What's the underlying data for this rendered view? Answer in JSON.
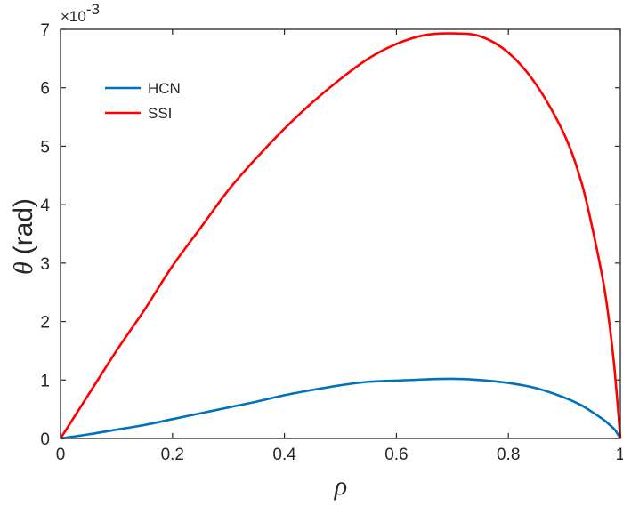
{
  "chart_data": {
    "type": "line",
    "xlabel": "ρ",
    "ylabel_symbol": "θ",
    "ylabel_unit": "(rad)",
    "y_exponent_base": "×10",
    "y_exponent_power": "-3",
    "xlim": [
      0,
      1
    ],
    "ylim": [
      0,
      7
    ],
    "xticks": [
      0,
      0.2,
      0.4,
      0.6,
      0.8,
      1
    ],
    "xtick_labels": [
      "0",
      "0.2",
      "0.4",
      "0.6",
      "0.8",
      "1"
    ],
    "yticks": [
      0,
      1,
      2,
      3,
      4,
      5,
      6,
      7
    ],
    "ytick_labels": [
      "0",
      "1",
      "2",
      "3",
      "4",
      "5",
      "6",
      "7"
    ],
    "grid": false,
    "legend_position": "top-left",
    "series": [
      {
        "name": "HCN",
        "color": "#0072bd",
        "x": [
          0,
          0.05,
          0.1,
          0.15,
          0.2,
          0.25,
          0.3,
          0.35,
          0.4,
          0.45,
          0.5,
          0.55,
          0.6,
          0.65,
          0.7,
          0.75,
          0.8,
          0.85,
          0.9,
          0.93,
          0.95,
          0.97,
          0.98,
          0.99,
          0.995,
          1.0
        ],
        "y": [
          0,
          0.07,
          0.15,
          0.23,
          0.33,
          0.43,
          0.53,
          0.63,
          0.74,
          0.83,
          0.91,
          0.97,
          0.99,
          1.01,
          1.02,
          1.0,
          0.95,
          0.86,
          0.7,
          0.57,
          0.45,
          0.32,
          0.24,
          0.15,
          0.08,
          0
        ]
      },
      {
        "name": "SSI",
        "color": "#ff0000",
        "x": [
          0,
          0.05,
          0.1,
          0.15,
          0.2,
          0.25,
          0.3,
          0.35,
          0.4,
          0.45,
          0.5,
          0.55,
          0.6,
          0.65,
          0.7,
          0.75,
          0.8,
          0.85,
          0.9,
          0.93,
          0.95,
          0.97,
          0.98,
          0.985,
          0.99,
          0.995,
          1.0
        ],
        "y": [
          0,
          0.75,
          1.5,
          2.2,
          2.95,
          3.6,
          4.25,
          4.8,
          5.3,
          5.75,
          6.15,
          6.5,
          6.75,
          6.9,
          6.93,
          6.88,
          6.6,
          6.05,
          5.2,
          4.4,
          3.6,
          2.65,
          2.0,
          1.6,
          1.15,
          0.6,
          0
        ]
      }
    ]
  }
}
